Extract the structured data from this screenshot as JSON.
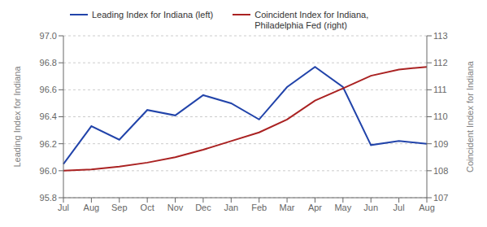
{
  "chart_data": {
    "type": "line",
    "categories": [
      "Jul",
      "Aug",
      "Sep",
      "Oct",
      "Nov",
      "Dec",
      "Jan",
      "Feb",
      "Mar",
      "Apr",
      "May",
      "Jun",
      "Jul",
      "Aug"
    ],
    "series": [
      {
        "name": "Leading Index for Indiana (left)",
        "color": "#2244aa",
        "values": [
          96.05,
          96.33,
          96.23,
          96.45,
          96.41,
          96.56,
          96.5,
          96.38,
          96.62,
          96.77,
          96.62,
          96.19,
          96.22,
          96.2
        ]
      },
      {
        "name": "Coincident Index for Indiana,\nPhiladelphia Fed (right)",
        "color": "#aa2222",
        "axis": "y2",
        "values": [
          108.0,
          108.05,
          108.15,
          108.3,
          108.5,
          108.78,
          109.1,
          109.42,
          109.9,
          110.6,
          111.05,
          111.52,
          111.75,
          111.85
        ]
      }
    ],
    "y_label": "Leading Index for Indiana",
    "y2_label": "Coincident Index for Indiana",
    "ylim": [
      95.8,
      97.0
    ],
    "yticks": [
      95.8,
      {
        "value": 96.0,
        "label": "96.0"
      },
      96.2,
      96.4,
      96.6,
      96.8,
      {
        "value": 97.0,
        "label": "97.0"
      }
    ],
    "y2lim": [
      107,
      113
    ],
    "y2ticks": [
      107,
      108,
      109,
      110,
      111,
      112,
      113
    ],
    "grid": true,
    "legend": "upper left"
  }
}
